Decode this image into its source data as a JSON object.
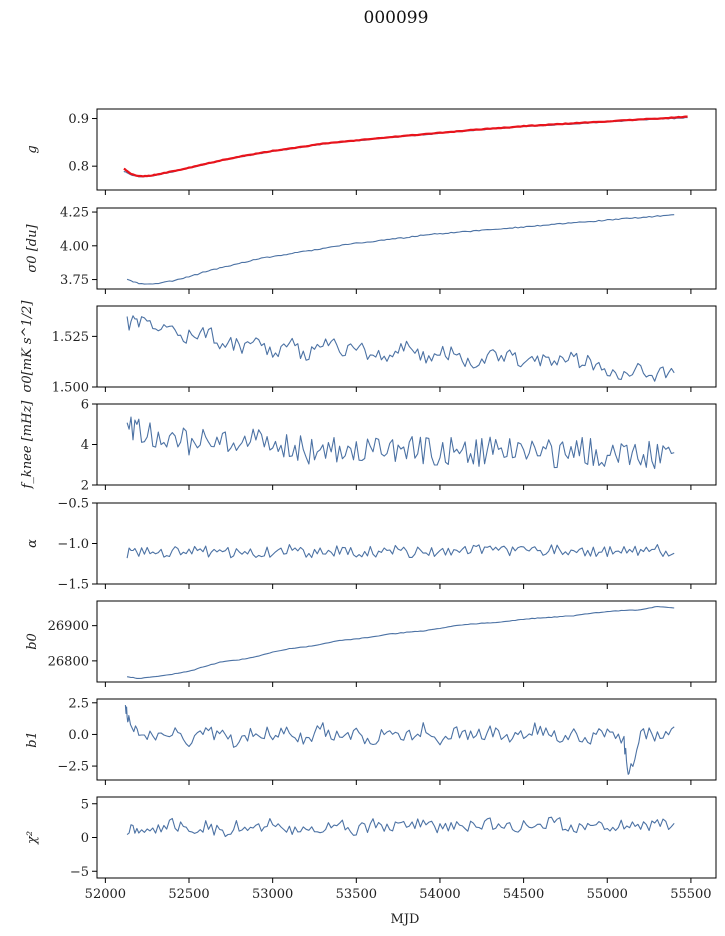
{
  "title": "000099",
  "colors": {
    "series": "#4c72a4",
    "model": "#e8141c",
    "axis": "#000000"
  },
  "chart_data": [
    {
      "type": "line",
      "ylabel": "g",
      "xlim": [
        51950,
        55650
      ],
      "ylim": [
        0.75,
        0.92
      ],
      "yticks": [
        0.8,
        0.9
      ],
      "ytick_labels": [
        "0.8",
        "0.9"
      ],
      "series": [
        {
          "kind": "data",
          "x": [
            52110,
            52150,
            52200,
            52250,
            52300,
            52400,
            52500,
            52600,
            52700,
            52800,
            52900,
            53000,
            53100,
            53200,
            53300,
            53400,
            53500,
            53600,
            53700,
            53800,
            53900,
            54000,
            54100,
            54200,
            54300,
            54400,
            54500,
            54600,
            54700,
            54800,
            54900,
            55000,
            55100,
            55200,
            55300,
            55400,
            55480
          ],
          "y": [
            0.79,
            0.782,
            0.778,
            0.778,
            0.781,
            0.788,
            0.796,
            0.804,
            0.812,
            0.819,
            0.825,
            0.831,
            0.836,
            0.841,
            0.846,
            0.85,
            0.853,
            0.857,
            0.86,
            0.863,
            0.866,
            0.869,
            0.872,
            0.875,
            0.878,
            0.88,
            0.883,
            0.885,
            0.887,
            0.889,
            0.891,
            0.893,
            0.895,
            0.897,
            0.899,
            0.9,
            0.902
          ]
        },
        {
          "kind": "model",
          "x": [
            52110,
            52150,
            52200,
            52250,
            52300,
            52400,
            52500,
            52600,
            52700,
            52800,
            52900,
            53000,
            53100,
            53200,
            53300,
            53400,
            53500,
            53600,
            53700,
            53800,
            53900,
            54000,
            54100,
            54200,
            54300,
            54400,
            54500,
            54600,
            54700,
            54800,
            54900,
            55000,
            55100,
            55200,
            55300,
            55400,
            55480
          ],
          "y": [
            0.795,
            0.784,
            0.779,
            0.779,
            0.782,
            0.789,
            0.797,
            0.805,
            0.813,
            0.82,
            0.826,
            0.832,
            0.837,
            0.842,
            0.847,
            0.851,
            0.854,
            0.858,
            0.861,
            0.864,
            0.867,
            0.87,
            0.873,
            0.876,
            0.879,
            0.881,
            0.884,
            0.886,
            0.888,
            0.89,
            0.892,
            0.894,
            0.896,
            0.898,
            0.9,
            0.902,
            0.904
          ]
        }
      ]
    },
    {
      "type": "line",
      "ylabel": "σ0 [du]",
      "xlim": [
        51950,
        55650
      ],
      "ylim": [
        3.68,
        4.28
      ],
      "yticks": [
        3.75,
        4.0,
        4.25
      ],
      "ytick_labels": [
        "3.75",
        "4.00",
        "4.25"
      ],
      "series": [
        {
          "kind": "data",
          "x": [
            52130,
            52200,
            52300,
            52400,
            52500,
            52600,
            52700,
            52800,
            52900,
            53000,
            53100,
            53200,
            53300,
            53400,
            53500,
            53600,
            53700,
            53800,
            53900,
            54000,
            54100,
            54200,
            54300,
            54400,
            54500,
            54600,
            54700,
            54800,
            54900,
            55000,
            55100,
            55200,
            55300,
            55400
          ],
          "y": [
            3.75,
            3.72,
            3.72,
            3.74,
            3.77,
            3.81,
            3.84,
            3.87,
            3.9,
            3.92,
            3.94,
            3.96,
            3.98,
            4.0,
            4.02,
            4.03,
            4.05,
            4.06,
            4.08,
            4.09,
            4.1,
            4.11,
            4.12,
            4.13,
            4.14,
            4.15,
            4.16,
            4.17,
            4.18,
            4.19,
            4.2,
            4.21,
            4.22,
            4.23
          ]
        }
      ]
    },
    {
      "type": "line",
      "ylabel": "σ0[mK s^1/2]",
      "xlim": [
        51950,
        55650
      ],
      "ylim": [
        1.5,
        1.54
      ],
      "yticks": [
        1.5,
        1.525
      ],
      "ytick_labels": [
        "1.500",
        "1.525"
      ],
      "series": [
        {
          "kind": "data",
          "x": [
            52130,
            52200,
            52300,
            52400,
            52500,
            52600,
            52700,
            52800,
            52900,
            53000,
            53100,
            53200,
            53300,
            53400,
            53500,
            53600,
            53700,
            53800,
            53900,
            54000,
            54100,
            54200,
            54300,
            54400,
            54500,
            54600,
            54700,
            54800,
            54900,
            55000,
            55100,
            55200,
            55300,
            55400
          ],
          "y": [
            1.531,
            1.532,
            1.53,
            1.528,
            1.525,
            1.527,
            1.522,
            1.52,
            1.523,
            1.518,
            1.521,
            1.516,
            1.524,
            1.518,
            1.52,
            1.515,
            1.517,
            1.519,
            1.514,
            1.518,
            1.516,
            1.512,
            1.515,
            1.517,
            1.513,
            1.514,
            1.511,
            1.514,
            1.512,
            1.509,
            1.507,
            1.51,
            1.506,
            1.507
          ]
        }
      ]
    },
    {
      "type": "line",
      "ylabel": "f_knee [mHz]",
      "xlim": [
        51950,
        55650
      ],
      "ylim": [
        2,
        6
      ],
      "yticks": [
        2,
        4,
        6
      ],
      "ytick_labels": [
        "2",
        "4",
        "6"
      ],
      "series": [
        {
          "kind": "data",
          "x": [
            52130,
            52200,
            52300,
            52400,
            52500,
            52600,
            52700,
            52800,
            52900,
            53000,
            53100,
            53200,
            53300,
            53400,
            53500,
            53600,
            53700,
            53800,
            53900,
            54000,
            54100,
            54200,
            54300,
            54400,
            54500,
            54600,
            54700,
            54800,
            54900,
            55000,
            55100,
            55200,
            55300,
            55400
          ],
          "y": [
            4.8,
            4.6,
            4.5,
            4.3,
            4.1,
            4.2,
            4.0,
            3.9,
            4.1,
            3.8,
            4.0,
            3.7,
            3.9,
            3.8,
            3.7,
            3.9,
            3.6,
            3.8,
            3.7,
            3.6,
            3.8,
            3.5,
            3.7,
            3.8,
            3.6,
            3.7,
            3.5,
            3.8,
            3.6,
            3.5,
            3.7,
            3.6,
            3.5,
            3.6
          ]
        }
      ]
    },
    {
      "type": "line",
      "ylabel": "α",
      "xlim": [
        51950,
        55650
      ],
      "ylim": [
        -1.5,
        -0.5
      ],
      "yticks": [
        -1.5,
        -1.0,
        -0.5
      ],
      "ytick_labels": [
        "−1.5",
        "−1.0",
        "−0.5"
      ],
      "series": [
        {
          "kind": "data",
          "x": [
            52130,
            52200,
            52300,
            52400,
            52500,
            52600,
            52700,
            52800,
            52900,
            53000,
            53100,
            53200,
            53300,
            53400,
            53500,
            53600,
            53700,
            53800,
            53900,
            54000,
            54100,
            54200,
            54300,
            54400,
            54500,
            54600,
            54700,
            54800,
            54900,
            55000,
            55100,
            55200,
            55300,
            55400
          ],
          "y": [
            -1.12,
            -1.1,
            -1.09,
            -1.11,
            -1.08,
            -1.1,
            -1.12,
            -1.09,
            -1.11,
            -1.1,
            -1.08,
            -1.12,
            -1.1,
            -1.09,
            -1.11,
            -1.1,
            -1.08,
            -1.11,
            -1.09,
            -1.1,
            -1.12,
            -1.08,
            -1.1,
            -1.09,
            -1.11,
            -1.1,
            -1.08,
            -1.07,
            -1.1,
            -1.11,
            -1.09,
            -1.1,
            -1.08,
            -1.12
          ]
        }
      ]
    },
    {
      "type": "line",
      "ylabel": "b0",
      "xlim": [
        51950,
        55650
      ],
      "ylim": [
        26740,
        26970
      ],
      "yticks": [
        26800,
        26900
      ],
      "ytick_labels": [
        "26800",
        "26900"
      ],
      "series": [
        {
          "kind": "data",
          "x": [
            52130,
            52200,
            52300,
            52400,
            52500,
            52600,
            52700,
            52800,
            52900,
            53000,
            53100,
            53200,
            53300,
            53400,
            53500,
            53600,
            53700,
            53800,
            53900,
            54000,
            54100,
            54200,
            54300,
            54400,
            54500,
            54600,
            54700,
            54800,
            54900,
            55000,
            55100,
            55200,
            55300,
            55400
          ],
          "y": [
            26755,
            26750,
            26755,
            26762,
            26770,
            26785,
            26798,
            26803,
            26812,
            26825,
            26835,
            26840,
            26848,
            26858,
            26862,
            26868,
            26876,
            26881,
            26885,
            26892,
            26900,
            26905,
            26908,
            26912,
            26918,
            26922,
            26925,
            26928,
            26935,
            26940,
            26943,
            26945,
            26955,
            26950
          ]
        }
      ]
    },
    {
      "type": "line",
      "ylabel": "b1",
      "xlim": [
        51950,
        55650
      ],
      "ylim": [
        -3.6,
        2.8
      ],
      "yticks": [
        -2.5,
        0.0,
        2.5
      ],
      "ytick_labels": [
        "−2.5",
        "0.0",
        "2.5"
      ],
      "series": [
        {
          "kind": "data",
          "x": [
            52120,
            52140,
            52200,
            52300,
            52400,
            52500,
            52600,
            52700,
            52800,
            52900,
            53000,
            53100,
            53200,
            53300,
            53400,
            53500,
            53600,
            53700,
            53800,
            53900,
            54000,
            54100,
            54200,
            54300,
            54400,
            54500,
            54600,
            54700,
            54800,
            54900,
            55000,
            55100,
            55130,
            55200,
            55300,
            55400
          ],
          "y": [
            2.2,
            1.2,
            0.2,
            -0.3,
            0.1,
            -0.5,
            0.3,
            -0.2,
            -0.6,
            0.4,
            -0.1,
            0.2,
            -0.4,
            0.5,
            -0.3,
            0.1,
            -0.5,
            0.2,
            -0.1,
            0.4,
            -0.3,
            0.2,
            -0.2,
            0.3,
            -0.4,
            0.1,
            0.5,
            -0.3,
            0.2,
            -0.5,
            0.3,
            -0.6,
            -3.3,
            0.4,
            -0.2,
            0.6
          ]
        }
      ]
    },
    {
      "type": "line",
      "ylabel": "χ²",
      "xlim": [
        51950,
        55650
      ],
      "ylim": [
        -6,
        6
      ],
      "yticks": [
        -5,
        0,
        5
      ],
      "ytick_labels": [
        "−5",
        "0",
        "5"
      ],
      "xticks": [
        52000,
        52500,
        53000,
        53500,
        54000,
        54500,
        55000,
        55500
      ],
      "xtick_labels": [
        "52000",
        "52500",
        "53000",
        "53500",
        "54000",
        "54500",
        "55000",
        "55500"
      ],
      "xlabel": "MJD",
      "series": [
        {
          "kind": "data",
          "x": [
            52130,
            52200,
            52300,
            52400,
            52500,
            52600,
            52700,
            52800,
            52900,
            53000,
            53100,
            53200,
            53300,
            53400,
            53500,
            53600,
            53700,
            53800,
            53900,
            54000,
            54100,
            54200,
            54300,
            54400,
            54500,
            54600,
            54700,
            54800,
            54900,
            55000,
            55100,
            55200,
            55300,
            55400
          ],
          "y": [
            0.8,
            1.5,
            1.2,
            2.0,
            1.0,
            1.6,
            0.9,
            1.8,
            1.3,
            2.1,
            1.1,
            1.7,
            1.4,
            2.2,
            1.0,
            1.9,
            1.3,
            1.6,
            2.0,
            1.2,
            1.8,
            1.5,
            2.1,
            1.3,
            1.7,
            1.9,
            2.3,
            1.4,
            1.8,
            1.6,
            2.0,
            1.5,
            1.9,
            2.1
          ]
        }
      ]
    }
  ]
}
